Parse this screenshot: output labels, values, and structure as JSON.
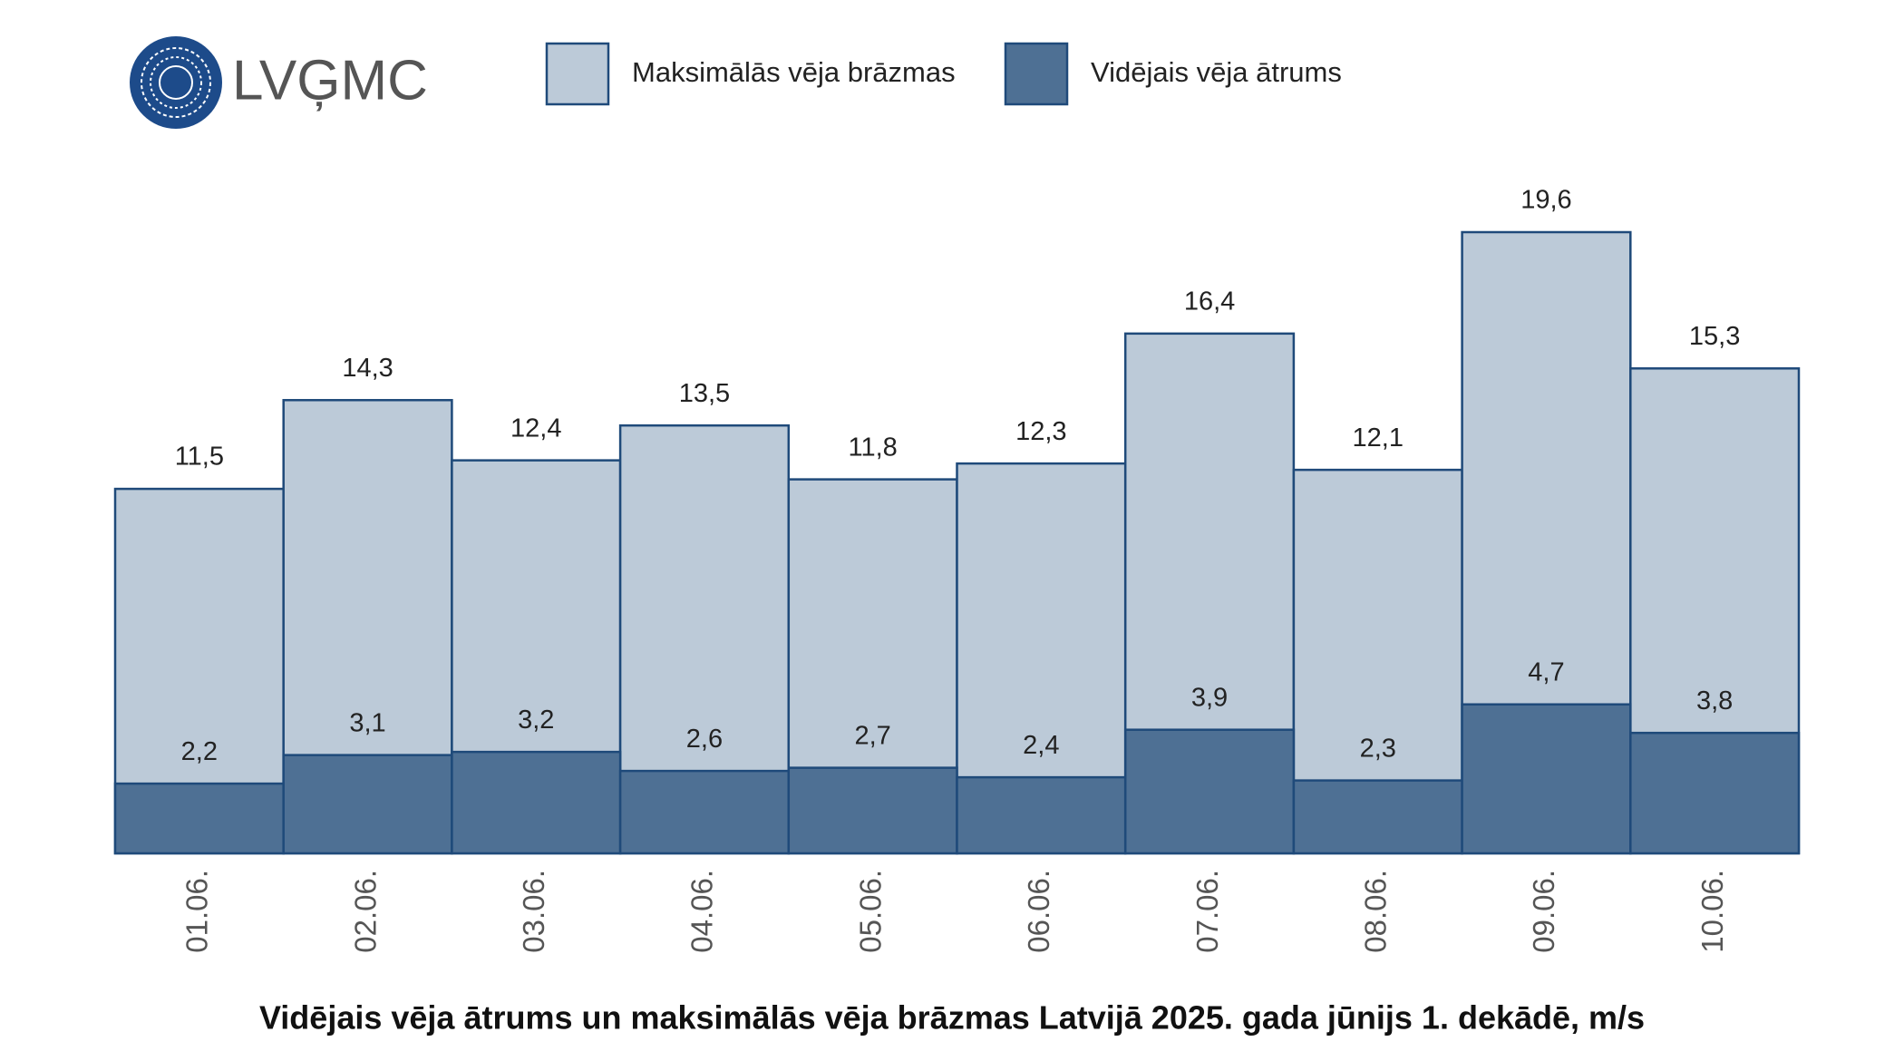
{
  "logo": "LVĢMC",
  "chart_data": {
    "type": "bar",
    "title": "Vidējais vēja ātrums un maksimālās vēja brāzmas Latvijā 2025. gada jūnijs 1. dekādē, m/s",
    "categories": [
      "01.06.",
      "02.06.",
      "03.06.",
      "04.06.",
      "05.06.",
      "06.06.",
      "07.06.",
      "08.06.",
      "09.06.",
      "10.06."
    ],
    "series": [
      {
        "name": "Maksimālās vēja brāzmas",
        "color": "#bccad8",
        "values": [
          11.5,
          14.3,
          12.4,
          13.5,
          11.8,
          12.3,
          16.4,
          12.1,
          19.6,
          15.3
        ],
        "value_labels": [
          "11,5",
          "14,3",
          "12,4",
          "13,5",
          "11,8",
          "12,3",
          "16,4",
          "12,1",
          "19,6",
          "15,3"
        ]
      },
      {
        "name": "Vidējais vēja ātrums",
        "color": "#4e7094",
        "values": [
          2.2,
          3.1,
          3.2,
          2.6,
          2.7,
          2.4,
          3.9,
          2.3,
          4.7,
          3.8
        ],
        "value_labels": [
          "2,2",
          "3,1",
          "3,2",
          "2,6",
          "2,7",
          "2,4",
          "3,9",
          "2,3",
          "4,7",
          "3,8"
        ]
      }
    ],
    "border_color": "#1f4a7a"
  }
}
